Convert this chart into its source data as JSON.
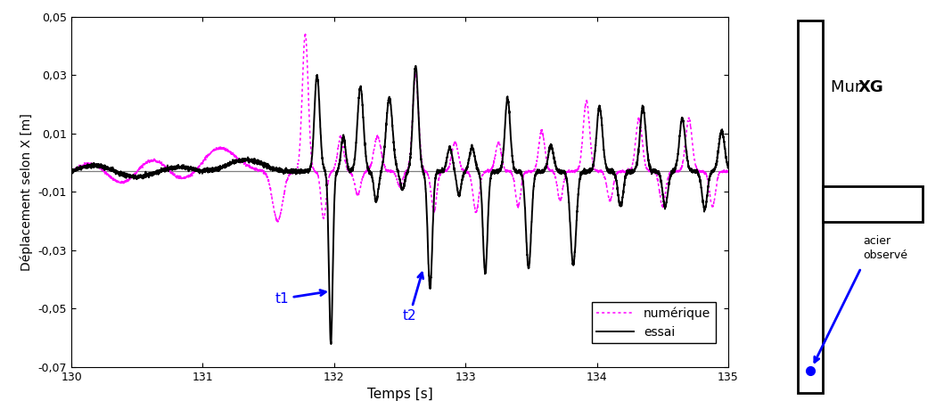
{
  "xlim": [
    130,
    135
  ],
  "ylim": [
    -0.07,
    0.05
  ],
  "yticks": [
    -0.07,
    -0.05,
    -0.03,
    -0.01,
    0.01,
    0.03,
    0.05
  ],
  "ytick_labels": [
    "-0,07",
    "-0,05",
    "-0,03",
    "-0,01",
    "0,01",
    "0,03",
    "0,05"
  ],
  "xticks": [
    130,
    131,
    132,
    133,
    134,
    135
  ],
  "xlabel": "Temps [s]",
  "ylabel": "Déplacement selon X [m]",
  "legend_numerique": "numérique",
  "legend_essai": "essai",
  "color_numerique": "#ff00ff",
  "color_essai": "#000000",
  "hline_y": -0.003,
  "mur_label_normal": "Mur ",
  "mur_label_bold": "XG",
  "acier_label": "acier\nobservé"
}
